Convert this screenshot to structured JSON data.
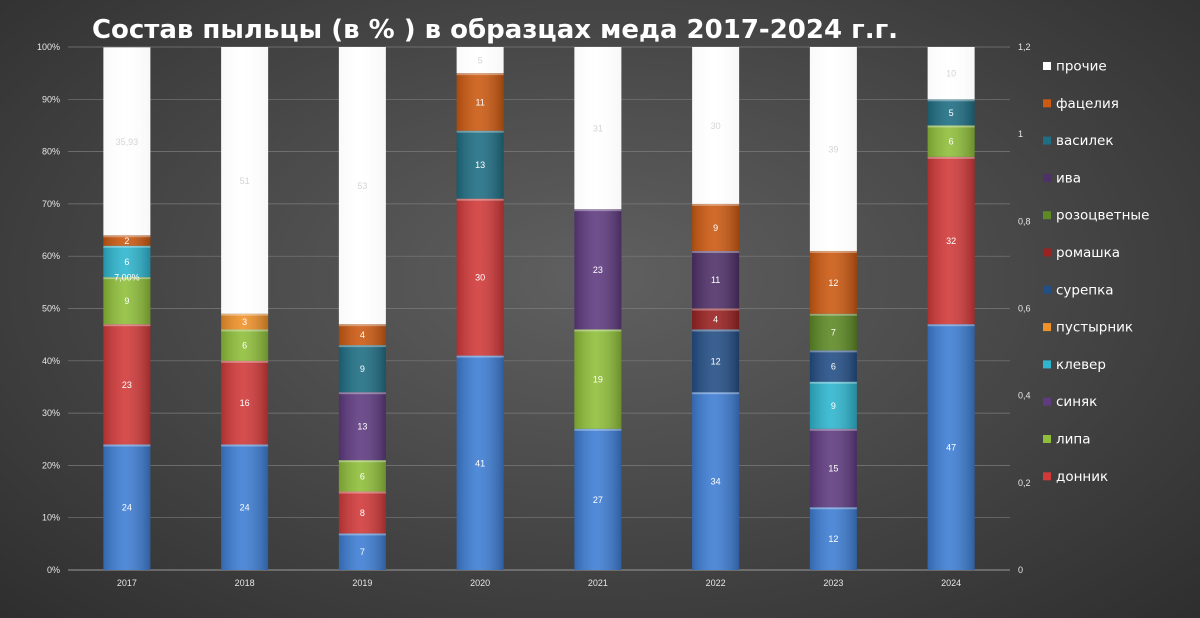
{
  "chart_data": {
    "type": "bar",
    "stacked": true,
    "title": "Состав пыльцы (в % ) в образцах меда 2017-2024 г.г.",
    "categories": [
      "2017",
      "2018",
      "2019",
      "2020",
      "2021",
      "2022",
      "2023",
      "2024"
    ],
    "ylim": [
      0,
      100
    ],
    "y_ticks": [
      "0%",
      "10%",
      "20%",
      "30%",
      "40%",
      "50%",
      "60%",
      "70%",
      "80%",
      "90%",
      "100%"
    ],
    "y2_ticks": [
      "0",
      "0,2",
      "0,4",
      "0,6",
      "0,8",
      "1",
      "1,2"
    ],
    "grid": true,
    "legend_position": "right",
    "series": [
      {
        "name": "",
        "color": "#3e7ed4",
        "values": [
          24,
          24,
          7,
          41,
          27,
          34,
          12,
          47
        ],
        "labels": [
          "24",
          "24",
          "7",
          "41",
          "27",
          "34",
          "12",
          "47"
        ]
      },
      {
        "name": "донник",
        "color": "#d23a3a",
        "values": [
          23,
          16,
          8,
          30,
          0,
          0,
          0,
          32
        ],
        "labels": [
          "23",
          "16",
          "8",
          "30",
          "",
          "",
          "",
          "32"
        ]
      },
      {
        "name": "липа",
        "color": "#8fbf3a",
        "values": [
          9,
          6,
          6,
          0,
          19,
          0,
          0,
          6
        ],
        "labels": [
          "9",
          "6",
          "6",
          "",
          "19",
          "",
          "",
          "6"
        ]
      },
      {
        "name": "синяк",
        "color": "#5f3b80",
        "values": [
          0,
          0,
          13,
          0,
          23,
          0,
          15,
          0
        ],
        "labels": [
          "",
          "",
          "13",
          "",
          "23",
          "",
          "15",
          ""
        ]
      },
      {
        "name": "клевер",
        "color": "#2fb6cf",
        "values": [
          6,
          0,
          0,
          0,
          0,
          0,
          9,
          0
        ],
        "labels": [
          "6",
          "",
          "",
          "",
          "",
          "",
          "9",
          ""
        ]
      },
      {
        "name": "пустырник",
        "color": "#f0922a",
        "values": [
          0,
          3,
          0,
          0,
          0,
          0,
          0,
          0
        ],
        "labels": [
          "",
          "3",
          "",
          "",
          "",
          "",
          "",
          ""
        ]
      },
      {
        "name": "сурепка",
        "color": "#244f86",
        "values": [
          0,
          0,
          0,
          0,
          0,
          12,
          6,
          0
        ],
        "labels": [
          "",
          "",
          "",
          "",
          "",
          "12",
          "6",
          ""
        ]
      },
      {
        "name": "ромашка",
        "color": "#9a2222",
        "values": [
          0,
          0,
          0,
          0,
          0,
          4,
          0,
          0
        ],
        "labels": [
          "",
          "",
          "",
          "",
          "",
          "4",
          "",
          ""
        ]
      },
      {
        "name": "розоцветные",
        "color": "#5e8a26",
        "values": [
          0,
          0,
          0,
          0,
          0,
          0,
          7,
          0
        ],
        "labels": [
          "",
          "",
          "",
          "",
          "",
          "",
          "7",
          ""
        ]
      },
      {
        "name": "ива",
        "color": "#4f3168",
        "values": [
          0,
          0,
          0,
          0,
          0,
          11,
          0,
          0
        ],
        "labels": [
          "",
          "",
          "",
          "",
          "",
          "11",
          "",
          ""
        ]
      },
      {
        "name": "василек",
        "color": "#1f6e84",
        "values": [
          0,
          0,
          9,
          13,
          0,
          0,
          0,
          5
        ],
        "labels": [
          "",
          "",
          "9",
          "13",
          "",
          "",
          "",
          "5"
        ]
      },
      {
        "name": "фацелия",
        "color": "#cc5a12",
        "values": [
          2,
          0,
          4,
          11,
          0,
          9,
          12,
          0
        ],
        "labels": [
          "2",
          "",
          "4",
          "11",
          "",
          "9",
          "12",
          ""
        ]
      },
      {
        "name": "прочие",
        "color": "#ffffff",
        "values": [
          35.93,
          51,
          53,
          5,
          31,
          30,
          39,
          10
        ],
        "labels": [
          "35,93",
          "51",
          "53",
          "5",
          "31",
          "30",
          "39",
          "10"
        ]
      }
    ],
    "extra_labels": [
      {
        "category": "2017",
        "at": 56,
        "text": "7,00%"
      }
    ],
    "legend_order": [
      "прочие",
      "фацелия",
      "василек",
      "ива",
      "розоцветные",
      "ромашка",
      "сурепка",
      "пустырник",
      "клевер",
      "синяк",
      "липа",
      "донник"
    ]
  }
}
